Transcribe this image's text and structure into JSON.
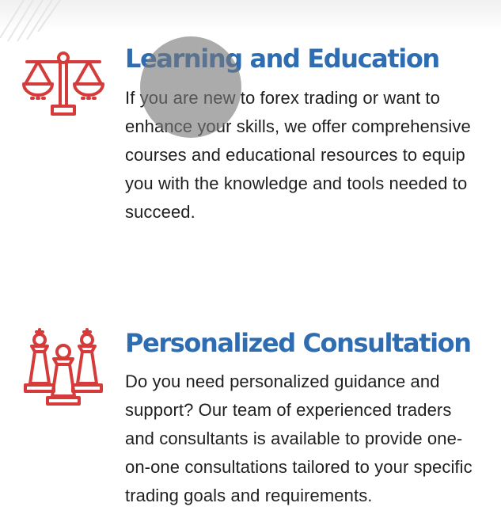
{
  "features": [
    {
      "title": "Learning and Education",
      "description": "If you are new to forex trading or want to enhance your skills, we offer comprehensive courses and educational resources to equip you with the knowledge and tools needed to succeed.",
      "icon": "scales-icon"
    },
    {
      "title": "Personalized Consultation",
      "description": "Do you need personalized guidance and support? Our team of experienced traders and consultants is available to provide one-on-one consultations tailored to your specific trading goals and requirements.",
      "icon": "chess-pawns-icon"
    }
  ],
  "colors": {
    "title": "#2f6db2",
    "icon": "#d63b3b",
    "text": "#1f1f1f"
  }
}
